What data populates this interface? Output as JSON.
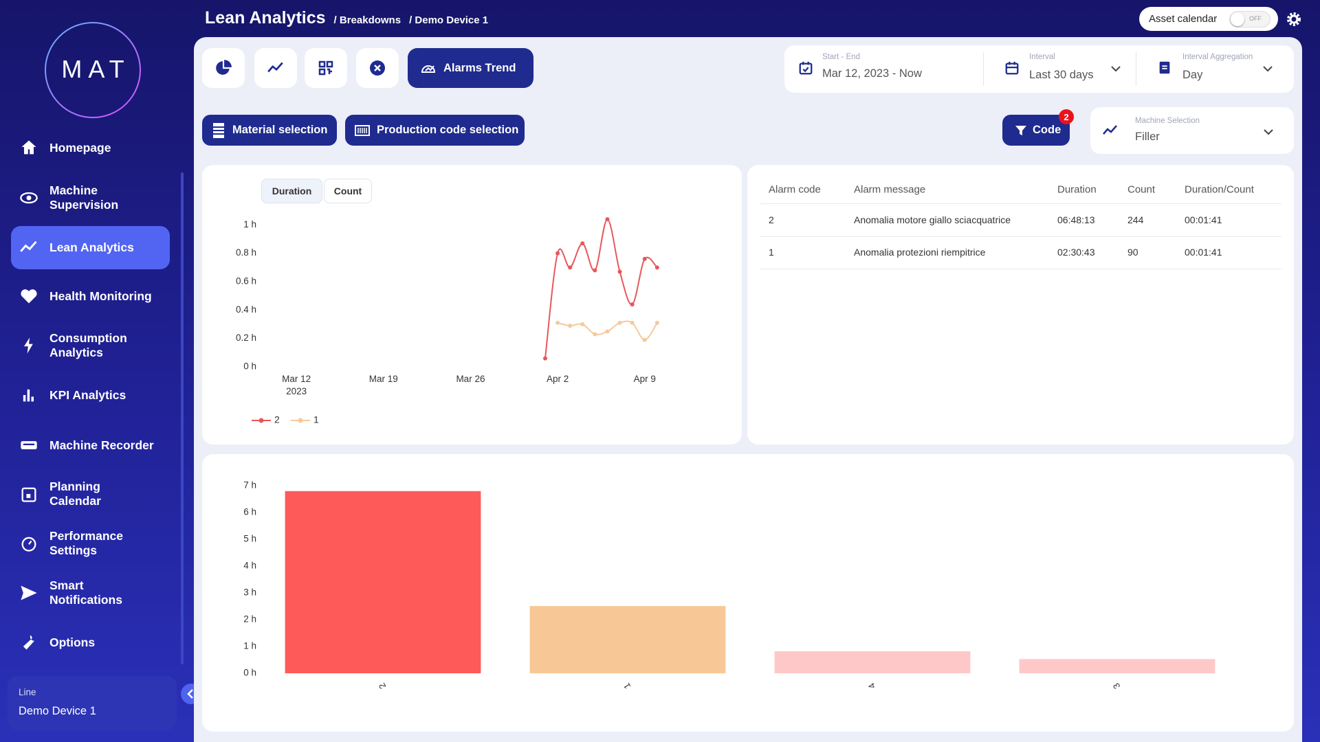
{
  "sidebar": {
    "logo": "MAT",
    "nav": [
      "Homepage",
      "Machine Supervision",
      "Lean Analytics",
      "Health Monitoring",
      "Consumption Analytics",
      "KPI Analytics",
      "Machine Recorder",
      "Planning Calendar",
      "Performance Settings",
      "Smart Notifications",
      "Options"
    ],
    "line": {
      "label": "Line",
      "value": "Demo Device 1"
    }
  },
  "header": {
    "title": "Lean Analytics",
    "breadcrumbs": [
      "/ Breakdowns",
      "/ Demo Device 1"
    ],
    "asset_calendar": "Asset calendar",
    "toggle": "OFF"
  },
  "toolbar": {
    "active_view": "Alarms Trend",
    "material": "Material selection",
    "production_code": "Production code selection",
    "code": "Code",
    "code_badge": "2"
  },
  "filters": {
    "range": {
      "label": "Start - End",
      "value": "Mar 12, 2023 - Now"
    },
    "interval": {
      "label": "Interval",
      "value": "Last 30 days"
    },
    "aggregation": {
      "label": "Interval Aggregation",
      "value": "Day"
    },
    "machine": {
      "label": "Machine Selection",
      "value": "Filler"
    }
  },
  "chart_data": [
    {
      "type": "line",
      "tabs": [
        "Duration",
        "Count"
      ],
      "x": [
        "2023-04-01",
        "2023-04-02",
        "2023-04-03",
        "2023-04-04",
        "2023-04-05",
        "2023-04-06",
        "2023-04-07",
        "2023-04-08",
        "2023-04-09",
        "2023-04-10"
      ],
      "series": [
        {
          "name": "2",
          "color": "#e8575a",
          "values": [
            0.06,
            0.8,
            0.7,
            0.87,
            0.68,
            1.04,
            0.67,
            0.44,
            0.76,
            0.7
          ]
        },
        {
          "name": "1",
          "color": "#f5c99b",
          "values": [
            null,
            0.31,
            0.29,
            0.3,
            0.23,
            0.25,
            0.31,
            0.31,
            0.19,
            0.31
          ]
        }
      ],
      "xlim": [
        "2023-03-10",
        "2023-04-12"
      ],
      "xticks": [
        {
          "value": "2023-03-12",
          "label": "Mar 12\n2023"
        },
        {
          "value": "2023-03-19",
          "label": "Mar 19"
        },
        {
          "value": "2023-03-26",
          "label": "Mar 26"
        },
        {
          "value": "2023-04-02",
          "label": "Apr 2"
        },
        {
          "value": "2023-04-09",
          "label": "Apr 9"
        }
      ],
      "ylim": [
        0,
        1.05
      ],
      "yticks": [
        {
          "value": 0,
          "label": "0 h"
        },
        {
          "value": 0.2,
          "label": "0.2 h"
        },
        {
          "value": 0.4,
          "label": "0.4 h"
        },
        {
          "value": 0.6,
          "label": "0.6 h"
        },
        {
          "value": 0.8,
          "label": "0.8 h"
        },
        {
          "value": 1,
          "label": "1 h"
        }
      ],
      "grid": false
    },
    {
      "type": "bar",
      "categories": [
        "2",
        "1",
        "4",
        "3"
      ],
      "values": [
        6.8,
        2.51,
        0.82,
        0.53
      ],
      "colors": [
        "#ff5a5a",
        "#f7c896",
        "#ffc8c8",
        "#ffc8c8"
      ],
      "ylim": [
        0,
        7
      ],
      "yticks": [
        {
          "value": 0,
          "label": "0 h"
        },
        {
          "value": 1,
          "label": "1 h"
        },
        {
          "value": 2,
          "label": "2 h"
        },
        {
          "value": 3,
          "label": "3 h"
        },
        {
          "value": 4,
          "label": "4 h"
        },
        {
          "value": 5,
          "label": "5 h"
        },
        {
          "value": 6,
          "label": "6 h"
        },
        {
          "value": 7,
          "label": "7 h"
        }
      ],
      "grid": false
    }
  ],
  "table": {
    "columns": [
      "Alarm code",
      "Alarm message",
      "Duration",
      "Count",
      "Duration/Count"
    ],
    "rows": [
      [
        "2",
        "Anomalia motore giallo sciacquatrice",
        "06:48:13",
        244,
        "00:01:41"
      ],
      [
        "1",
        "Anomalia protezioni riempitrice",
        "02:30:43",
        90,
        "00:01:41"
      ]
    ]
  }
}
